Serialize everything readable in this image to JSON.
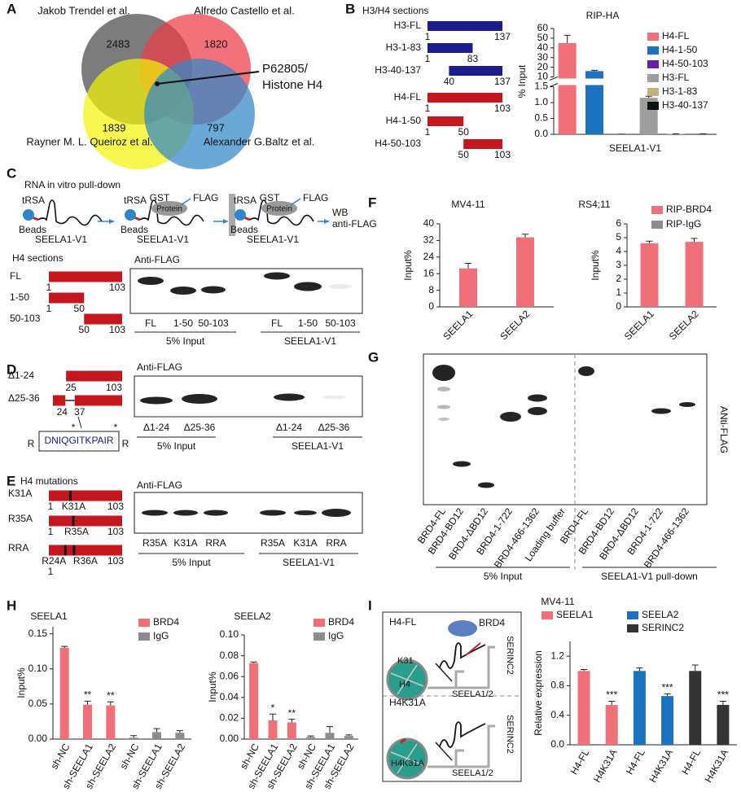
{
  "panels": [
    "A",
    "B",
    "C",
    "D",
    "E",
    "F",
    "G",
    "H",
    "I"
  ],
  "venn": {
    "sets": [
      {
        "label": "Jakob Trendel et al.",
        "count": 2483,
        "color": "#4a4a4a"
      },
      {
        "label": "Alfredo Castello et al.",
        "count": 1820,
        "color": "#ee3b47"
      },
      {
        "label": "Rayner M. L. Queiroz et al.",
        "count": 1839,
        "color": "#f2f20a"
      },
      {
        "label": "Alexander G.Baltz et al.",
        "count": 797,
        "color": "#2f86c8"
      }
    ],
    "annotation": [
      "P62805/",
      "Histone H4"
    ]
  },
  "panel_b": {
    "title": "H3/H4 sections",
    "constructs": [
      {
        "name": "H3-FL",
        "start": 1,
        "end": 137,
        "color": "#1c1c8f"
      },
      {
        "name": "H3-1-83",
        "start": 1,
        "end": 83,
        "color": "#1c1c8f"
      },
      {
        "name": "H3-40-137",
        "start": 40,
        "end": 137,
        "color": "#1c1c8f"
      },
      {
        "name": "H4-FL",
        "start": 1,
        "end": 103,
        "color": "#c4161c"
      },
      {
        "name": "H4-1-50",
        "start": 1,
        "end": 50,
        "color": "#c4161c"
      },
      {
        "name": "H4-50-103",
        "start": 50,
        "end": 103,
        "color": "#c4161c"
      }
    ]
  },
  "panel_c": {
    "title": "RNA in vitro pull-down",
    "schematics": [
      {
        "trsa": "tRSA",
        "beads": "Beads",
        "rna": "SEELA1-V1"
      },
      {
        "trsa": "tRSA",
        "beads": "Beads",
        "rna": "SEELA1-V1",
        "gst": "GST",
        "protein": "Protein",
        "flag": "FLAG"
      },
      {
        "trsa": "tRSA",
        "beads": "Beads",
        "rna": "SEELA1-V1",
        "gst": "GST",
        "protein": "Protein",
        "flag": "FLAG"
      }
    ],
    "readout": [
      "WB",
      "anti-FLAG"
    ],
    "sections_title": "H4 sections",
    "constructs": [
      {
        "name": "FL",
        "start": 1,
        "end": 103
      },
      {
        "name": "1-50",
        "start": 1,
        "end": 50
      },
      {
        "name": "50-103",
        "start": 50,
        "end": 103
      }
    ],
    "blot": {
      "antibody": "Anti-FLAG",
      "lanes": [
        "FL",
        "1-50",
        "50-103",
        "FL",
        "1-50",
        "50-103"
      ],
      "groups": [
        "5% Input",
        "SEELA1-V1"
      ]
    }
  },
  "panel_d": {
    "constructs": [
      {
        "name": "Δ1-24",
        "start": 25,
        "end": 103
      },
      {
        "name": "Δ25-36",
        "gap_start": 24,
        "gap_end": 37,
        "end": 103
      }
    ],
    "peptide": {
      "sequence": "DNIQGITKPAIR",
      "flank": [
        "R",
        "R"
      ],
      "marks": [
        "*",
        "*"
      ]
    },
    "blot": {
      "antibody": "Anti-FLAG",
      "lanes": [
        "Δ1-24",
        "Δ25-36",
        "Δ1-24",
        "Δ25-36"
      ],
      "groups": [
        "5% Input",
        "SEELA1-V1"
      ]
    }
  },
  "panel_e": {
    "title": "H4 mutations",
    "constructs": [
      {
        "name": "K31A",
        "start": 1,
        "end": 103,
        "mutations": [
          {
            "label": "K31A",
            "position": 31
          }
        ]
      },
      {
        "name": "R35A",
        "start": 1,
        "end": 103,
        "mutations": [
          {
            "label": "R35A",
            "position": 35
          }
        ]
      },
      {
        "name": "RRA",
        "start": 1,
        "end": 103,
        "mutations": [
          {
            "label": "R24A",
            "position": 24
          },
          {
            "label": "R36A",
            "position": 36
          }
        ]
      }
    ],
    "blot": {
      "antibody": "Anti-FLAG",
      "lanes": [
        "R35A",
        "K31A",
        "RRA",
        "R35A",
        "K31A",
        "RRA"
      ],
      "groups": [
        "5% Input",
        "SEELA1-V1"
      ]
    }
  },
  "panel_g": {
    "blot": {
      "antibody": "ANti-FLAG",
      "lanes": [
        "BRD4-FL",
        "BRD4-BD12",
        "BRD4-ΔBD12",
        "BRD4-1-722",
        "BRD4-466-1362",
        "Loading buffer",
        "BRD4-FL",
        "BRD4-BD12",
        "BRD4-ΔBD12",
        "BRD4-1-722",
        "BRD4-466-1362"
      ],
      "groups": [
        "5% Input",
        "SEELA1-V1 pull-down"
      ]
    }
  },
  "panel_i": {
    "top": {
      "label": "H4-FL",
      "reader": "BRD4",
      "site": "K31",
      "histone": "H4",
      "gene": "SERINC2",
      "rna": "SEELA1/2"
    },
    "bottom": {
      "label": "H4K31A",
      "histone": "H4K31A",
      "gene": "SERINC2",
      "rna": "SEELA1/2"
    }
  },
  "chart_data": [
    {
      "type": "bar",
      "title": "RIP-HA",
      "y_label": "% Input",
      "categories": [
        "SEELA1-V1"
      ],
      "series": [
        {
          "name": "H4-FL",
          "color": "#f0707a",
          "values": [
            45
          ],
          "errors": [
            8
          ]
        },
        {
          "name": "H4-1-50",
          "color": "#1a72c0",
          "values": [
            16
          ],
          "errors": [
            0.8
          ]
        },
        {
          "name": "H4-50-103",
          "color": "#6a1fa0",
          "values": [
            0.005
          ],
          "errors": [
            0.003
          ]
        },
        {
          "name": "H3-FL",
          "color": "#9e9e9e",
          "values": [
            1.15
          ],
          "errors": [
            0.05
          ]
        },
        {
          "name": "H3-1-83",
          "color": "#c2b27a",
          "values": [
            0.01
          ],
          "errors": [
            0.005
          ]
        },
        {
          "name": "H3-40-137",
          "color": "#111111",
          "values": [
            0.01
          ],
          "errors": [
            0.005
          ]
        }
      ],
      "ylim": [
        0,
        60
      ],
      "axis_break": [
        1.5,
        10
      ],
      "yticks": [
        {
          "value": 0,
          "label": "0.0"
        },
        {
          "value": 0.5,
          "label": "0.5"
        },
        {
          "value": 1,
          "label": "1.0"
        },
        {
          "value": 1.5,
          "label": "1.5"
        },
        10,
        20,
        30,
        40,
        50,
        60
      ],
      "legend": "right"
    },
    {
      "type": "bar",
      "title": "MV4-11",
      "y_label": "Input%",
      "categories": [
        "SEELA1",
        "SEELA2"
      ],
      "series": [
        {
          "color": "#f0707a",
          "values": [
            18.5,
            33.5
          ],
          "errors": [
            2.5,
            1.5
          ]
        }
      ],
      "ylim": [
        0,
        40
      ],
      "yticks": [
        0,
        8,
        16,
        24,
        32,
        40
      ]
    },
    {
      "type": "bar",
      "title": "RS4;11",
      "y_label": "Input%",
      "categories": [
        "SEELA1",
        "SEELA2"
      ],
      "series": [
        {
          "name": "RIP-BRD4",
          "color": "#f0707a",
          "values": [
            4.6,
            4.7
          ],
          "errors": [
            0.15,
            0.25
          ]
        },
        {
          "name": "RIP-IgG",
          "color": "#8c8c8c",
          "values": [
            null,
            null
          ]
        }
      ],
      "ylim": [
        0,
        6
      ],
      "yticks": [
        0,
        1,
        2,
        3,
        4,
        5,
        6
      ],
      "legend": "top right"
    },
    {
      "type": "bar",
      "title": "SEELA1",
      "y_label": "Input%",
      "categories": [
        "sh-NC",
        "sh-SEELA1",
        "sh-SEELA2",
        "sh-NC",
        "sh-SEELA1",
        "sh-SEELA2"
      ],
      "series": [
        {
          "name": "BRD4",
          "color": "#f0707a",
          "values": [
            0.13,
            0.049,
            0.048,
            null,
            null,
            null
          ],
          "errors": [
            0.002,
            0.005,
            0.005,
            null,
            null,
            null
          ],
          "significance": [
            null,
            "**",
            "**",
            null,
            null,
            null
          ]
        },
        {
          "name": "IgG",
          "color": "#8c8c8c",
          "values": [
            null,
            null,
            null,
            0.002,
            0.01,
            0.009
          ],
          "errors": [
            null,
            null,
            null,
            0.003,
            0.005,
            0.003
          ]
        }
      ],
      "ylim": [
        0,
        0.16
      ],
      "yticks": [
        {
          "value": 0,
          "label": "0.00"
        },
        {
          "value": 0.05,
          "label": "0.05"
        },
        {
          "value": 0.1,
          "label": "0.10"
        },
        {
          "value": 0.15,
          "label": "0.15"
        }
      ],
      "legend": "top right"
    },
    {
      "type": "bar",
      "title": "SEELA2",
      "y_label": "Input%",
      "categories": [
        "sh-NC",
        "sh-SEELA1",
        "sh-SEELA2",
        "sh-NC",
        "sh-SEELA1",
        "sh-SEELA2"
      ],
      "series": [
        {
          "name": "BRD4",
          "color": "#f0707a",
          "values": [
            0.073,
            0.018,
            0.016,
            null,
            null,
            null
          ],
          "errors": [
            0.001,
            0.006,
            0.003,
            null,
            null,
            null
          ],
          "significance": [
            null,
            "*",
            "**",
            null,
            null,
            null
          ]
        },
        {
          "name": "IgG",
          "color": "#8c8c8c",
          "values": [
            null,
            null,
            null,
            0.002,
            0.006,
            0.003
          ],
          "errors": [
            null,
            null,
            null,
            0.001,
            0.006,
            0.001
          ]
        }
      ],
      "ylim": [
        0,
        0.1
      ],
      "yticks": [
        {
          "value": 0,
          "label": "0.00"
        },
        {
          "value": 0.02,
          "label": "0.02"
        },
        {
          "value": 0.04,
          "label": "0.04"
        },
        {
          "value": 0.06,
          "label": "0.06"
        },
        {
          "value": 0.08,
          "label": "0.08"
        },
        {
          "value": 0.1,
          "label": "0.10"
        }
      ],
      "legend": "top right"
    },
    {
      "type": "bar",
      "title": "MV4-11",
      "y_label": "Relative expression",
      "categories": [
        "H4-FL",
        "H4K31A",
        "H4-FL",
        "H4K31A",
        "H4-FL",
        "H4K31A"
      ],
      "series": [
        {
          "name": "SEELA1",
          "color": "#f0707a",
          "values": [
            1,
            0.54,
            null,
            null,
            null,
            null
          ],
          "errors": [
            0.02,
            0.05,
            null,
            null,
            null,
            null
          ],
          "significance": [
            null,
            "***",
            null,
            null,
            null,
            null
          ]
        },
        {
          "name": "SEELA2",
          "color": "#1a72c0",
          "values": [
            null,
            null,
            1,
            0.66,
            null,
            null
          ],
          "errors": [
            null,
            null,
            0.04,
            0.03,
            null,
            null
          ],
          "significance": [
            null,
            null,
            null,
            "***",
            null,
            null
          ]
        },
        {
          "name": "SERINC2",
          "color": "#333333",
          "values": [
            null,
            null,
            null,
            null,
            1,
            0.54
          ],
          "errors": [
            null,
            null,
            null,
            null,
            0.08,
            0.05
          ],
          "significance": [
            null,
            null,
            null,
            null,
            null,
            "***"
          ]
        }
      ],
      "ylim": [
        0,
        1.4
      ],
      "yticks": [
        {
          "value": 0,
          "label": "0.0"
        },
        {
          "value": 0.4,
          "label": "0.4"
        },
        {
          "value": 0.8,
          "label": "0.8"
        },
        {
          "value": 1.2,
          "label": "1.2"
        }
      ],
      "legend": "top"
    }
  ]
}
